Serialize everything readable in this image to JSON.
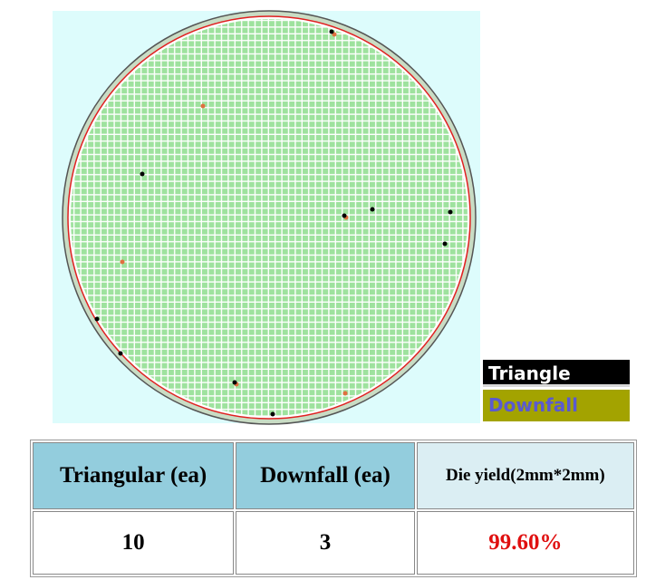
{
  "legend": {
    "items": [
      "Triangle",
      "Downfall"
    ]
  },
  "table": {
    "header": [
      "Triangular (ea)",
      "Downfall (ea)",
      "Die yield(2mm*2mm)"
    ],
    "rows": [
      [
        10,
        3,
        "99.60%"
      ]
    ]
  }
}
